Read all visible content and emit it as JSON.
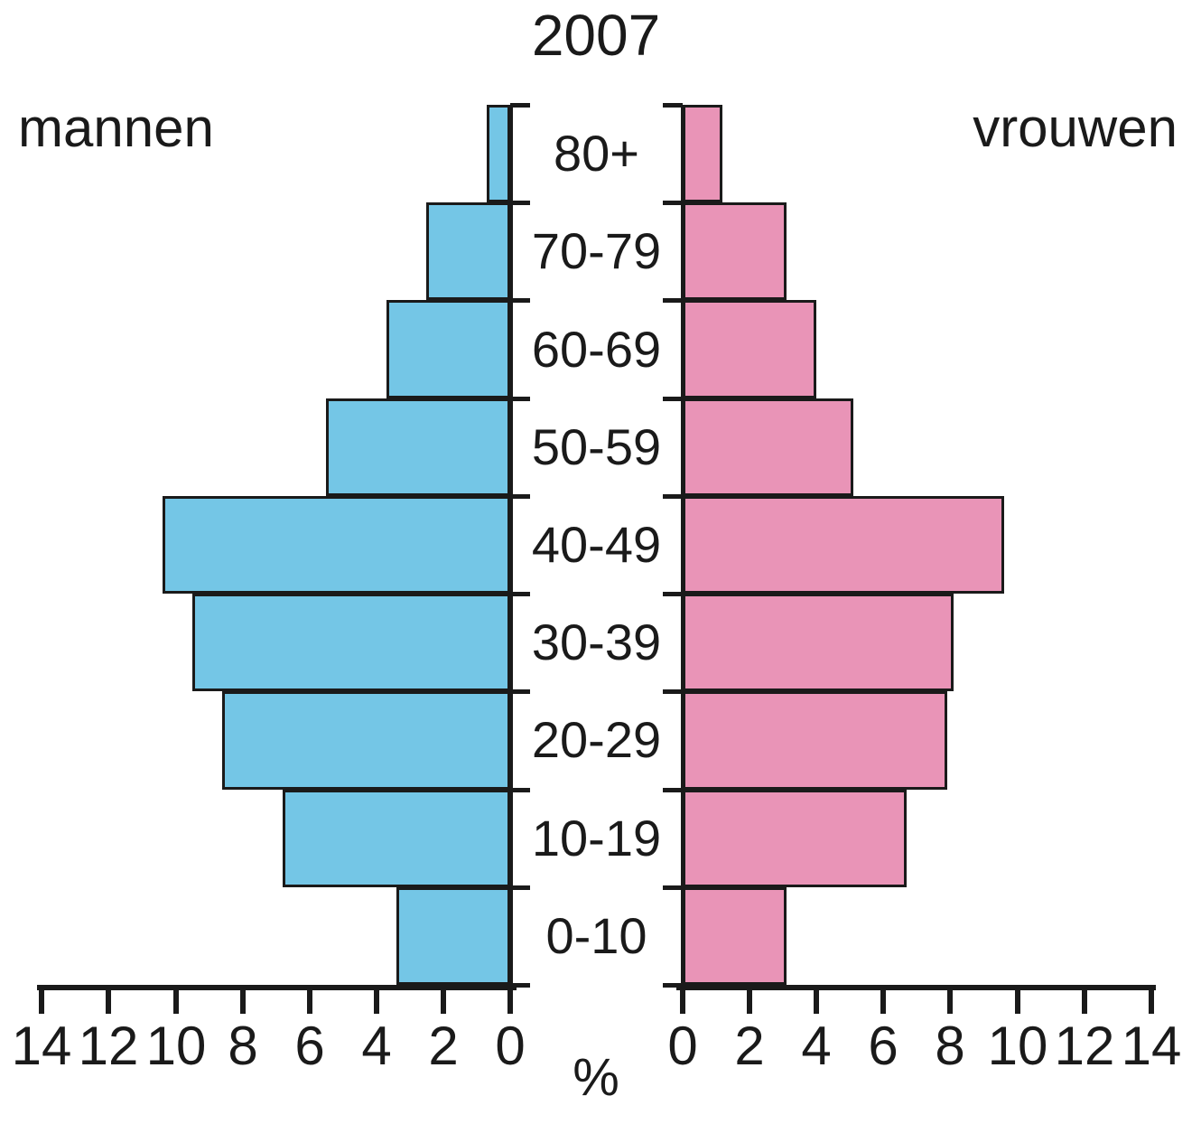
{
  "title": "2007",
  "left_label": "mannen",
  "right_label": "vrouwen",
  "colors": {
    "men_fill": "#74C6E6",
    "women_fill": "#E994B7",
    "ink": "#1a1a1a"
  },
  "left_axis_tick_labels": [
    "14",
    "12",
    "10",
    "8",
    "6",
    "4",
    "2",
    "0"
  ],
  "right_axis_tick_labels": [
    "0",
    "2",
    "4",
    "6",
    "8",
    "10",
    "12",
    "14"
  ],
  "chart_data": {
    "type": "bar",
    "subtype": "population-pyramid",
    "title": "2007",
    "categories": [
      "80+",
      "70-79",
      "60-69",
      "50-59",
      "40-49",
      "30-39",
      "20-29",
      "10-19",
      "0-10"
    ],
    "series": [
      {
        "name": "mannen",
        "side": "left",
        "color": "#74C6E6",
        "values": [
          0.7,
          2.5,
          3.7,
          5.5,
          10.4,
          9.5,
          8.6,
          6.8,
          3.4
        ]
      },
      {
        "name": "vrouwen",
        "side": "right",
        "color": "#E994B7",
        "values": [
          1.2,
          3.1,
          4.0,
          5.1,
          9.6,
          8.1,
          7.9,
          6.7,
          3.1
        ]
      }
    ],
    "xlabel": "%",
    "ylabel": "",
    "xlim": [
      0,
      14
    ],
    "xticks": [
      0,
      2,
      4,
      6,
      8,
      10,
      12,
      14
    ],
    "grid": false,
    "legend_position": "top-corners"
  }
}
